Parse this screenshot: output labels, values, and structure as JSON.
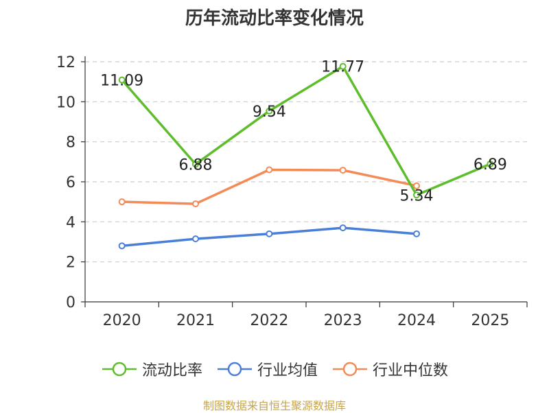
{
  "chart_data": {
    "type": "line",
    "title": "历年流动比率变化情况",
    "categories": [
      "2020",
      "2021",
      "2022",
      "2023",
      "2024",
      "2025"
    ],
    "ylim": [
      0,
      12
    ],
    "yticks": [
      0,
      2,
      4,
      6,
      8,
      10,
      12
    ],
    "grid": true,
    "legend_position": "bottom",
    "series": [
      {
        "name": "流动比率",
        "color": "#5dbd2b",
        "values": [
          11.09,
          6.88,
          9.54,
          11.77,
          5.34,
          6.89
        ],
        "labels": [
          "11.09",
          "6.88",
          "9.54",
          "11.77",
          "5.34",
          "6.89"
        ]
      },
      {
        "name": "行业均值",
        "color": "#4a7fd8",
        "values": [
          2.8,
          3.15,
          3.4,
          3.7,
          3.4,
          null
        ]
      },
      {
        "name": "行业中位数",
        "color": "#f48a55",
        "values": [
          5.0,
          4.9,
          6.6,
          6.58,
          5.8,
          null
        ]
      }
    ]
  },
  "source": "制图数据来自恒生聚源数据库"
}
